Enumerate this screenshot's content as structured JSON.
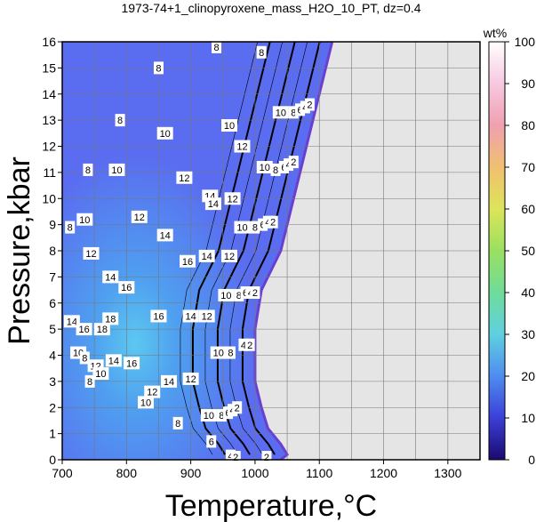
{
  "chart_data": {
    "type": "heatmap",
    "title": "1973-74+1_clinopyroxene_mass_H2O_10_PT, dz=0.4",
    "xlabel": "Temperature,°C",
    "ylabel": "Pressure,kbar",
    "xlim": [
      700,
      1350
    ],
    "ylim": [
      0,
      16
    ],
    "xticks": [
      700,
      800,
      900,
      1000,
      1100,
      1200,
      1300
    ],
    "yticks": [
      0,
      1,
      2,
      3,
      4,
      5,
      6,
      7,
      8,
      9,
      10,
      11,
      12,
      13,
      14,
      15,
      16
    ],
    "grid": true,
    "colorbar": {
      "label": "wt%",
      "range": [
        0,
        100
      ],
      "ticks": [
        0,
        10,
        20,
        30,
        40,
        50,
        60,
        70,
        80,
        90,
        100
      ],
      "colors": [
        "#1a0a6e",
        "#3b3fd8",
        "#4f8cf0",
        "#5fd0e0",
        "#6fdc9a",
        "#9ae060",
        "#dde45a",
        "#f0c070",
        "#f0a0b0",
        "#f7c8e0",
        "#ffffff"
      ]
    },
    "no_data_color": "#e5e5e5",
    "stability_boundary": {
      "x": [
        1120,
        1100,
        1080,
        1060,
        1040,
        1010,
        1000,
        1000,
        1010,
        1020,
        1040,
        1050,
        1040
      ],
      "y": [
        16,
        14,
        12,
        10,
        8,
        6.5,
        5,
        3,
        2,
        1.2,
        0.6,
        0.2,
        0
      ]
    },
    "contour_labels": [
      {
        "text": "8",
        "x": 940,
        "y": 15.8
      },
      {
        "text": "8",
        "x": 1010,
        "y": 15.6
      },
      {
        "text": "8",
        "x": 850,
        "y": 15.0
      },
      {
        "text": "8",
        "x": 790,
        "y": 13.0
      },
      {
        "text": "10",
        "x": 960,
        "y": 12.8
      },
      {
        "text": "10",
        "x": 1040,
        "y": 13.3
      },
      {
        "text": "8",
        "x": 1060,
        "y": 13.3
      },
      {
        "text": "6",
        "x": 1070,
        "y": 13.4
      },
      {
        "text": "4",
        "x": 1078,
        "y": 13.5
      },
      {
        "text": "2",
        "x": 1085,
        "y": 13.6
      },
      {
        "text": "10",
        "x": 860,
        "y": 12.5
      },
      {
        "text": "12",
        "x": 980,
        "y": 12.0
      },
      {
        "text": "8",
        "x": 740,
        "y": 11.1
      },
      {
        "text": "10",
        "x": 785,
        "y": 11.1
      },
      {
        "text": "12",
        "x": 890,
        "y": 10.8
      },
      {
        "text": "10",
        "x": 1015,
        "y": 11.2
      },
      {
        "text": "8",
        "x": 1032,
        "y": 11.1
      },
      {
        "text": "6",
        "x": 1045,
        "y": 11.2
      },
      {
        "text": "4",
        "x": 1052,
        "y": 11.3
      },
      {
        "text": "2",
        "x": 1060,
        "y": 11.4
      },
      {
        "text": "14",
        "x": 930,
        "y": 10.1
      },
      {
        "text": "14",
        "x": 935,
        "y": 9.8
      },
      {
        "text": "12",
        "x": 965,
        "y": 10.0
      },
      {
        "text": "12",
        "x": 820,
        "y": 9.3
      },
      {
        "text": "10",
        "x": 735,
        "y": 9.2
      },
      {
        "text": "8",
        "x": 712,
        "y": 8.9
      },
      {
        "text": "14",
        "x": 860,
        "y": 8.6
      },
      {
        "text": "10",
        "x": 980,
        "y": 8.9
      },
      {
        "text": "8",
        "x": 1000,
        "y": 8.9
      },
      {
        "text": "6",
        "x": 1012,
        "y": 9.0
      },
      {
        "text": "4",
        "x": 1020,
        "y": 9.1
      },
      {
        "text": "2",
        "x": 1028,
        "y": 9.1
      },
      {
        "text": "12",
        "x": 745,
        "y": 7.9
      },
      {
        "text": "16",
        "x": 895,
        "y": 7.6
      },
      {
        "text": "14",
        "x": 925,
        "y": 7.8
      },
      {
        "text": "12",
        "x": 960,
        "y": 7.8
      },
      {
        "text": "14",
        "x": 775,
        "y": 7.0
      },
      {
        "text": "16",
        "x": 800,
        "y": 6.6
      },
      {
        "text": "10",
        "x": 955,
        "y": 6.3
      },
      {
        "text": "8",
        "x": 975,
        "y": 6.3
      },
      {
        "text": "6",
        "x": 985,
        "y": 6.4
      },
      {
        "text": "4",
        "x": 993,
        "y": 6.4
      },
      {
        "text": "2",
        "x": 1000,
        "y": 6.4
      },
      {
        "text": "14",
        "x": 715,
        "y": 5.3
      },
      {
        "text": "18",
        "x": 775,
        "y": 5.4
      },
      {
        "text": "18",
        "x": 762,
        "y": 5.0
      },
      {
        "text": "16",
        "x": 734,
        "y": 5.0
      },
      {
        "text": "16",
        "x": 850,
        "y": 5.5
      },
      {
        "text": "14",
        "x": 900,
        "y": 5.5
      },
      {
        "text": "12",
        "x": 925,
        "y": 5.5
      },
      {
        "text": "4",
        "x": 982,
        "y": 4.4
      },
      {
        "text": "2",
        "x": 992,
        "y": 4.4
      },
      {
        "text": "10",
        "x": 943,
        "y": 4.1
      },
      {
        "text": "8",
        "x": 962,
        "y": 4.1
      },
      {
        "text": "10",
        "x": 725,
        "y": 4.1
      },
      {
        "text": "8",
        "x": 735,
        "y": 3.9
      },
      {
        "text": "14",
        "x": 780,
        "y": 3.8
      },
      {
        "text": "16",
        "x": 808,
        "y": 3.7
      },
      {
        "text": "12",
        "x": 752,
        "y": 3.6
      },
      {
        "text": "10",
        "x": 760,
        "y": 3.3
      },
      {
        "text": "8",
        "x": 743,
        "y": 3.0
      },
      {
        "text": "14",
        "x": 866,
        "y": 3.0
      },
      {
        "text": "12",
        "x": 900,
        "y": 3.1
      },
      {
        "text": "12",
        "x": 840,
        "y": 2.6
      },
      {
        "text": "10",
        "x": 830,
        "y": 2.2
      },
      {
        "text": "10",
        "x": 928,
        "y": 1.7
      },
      {
        "text": "8",
        "x": 948,
        "y": 1.7
      },
      {
        "text": "6",
        "x": 958,
        "y": 1.8
      },
      {
        "text": "4",
        "x": 965,
        "y": 1.9
      },
      {
        "text": "2",
        "x": 972,
        "y": 2.0
      },
      {
        "text": "8",
        "x": 880,
        "y": 1.4
      },
      {
        "text": "6",
        "x": 932,
        "y": 0.7
      },
      {
        "text": "4",
        "x": 962,
        "y": 0.15
      },
      {
        "text": "2",
        "x": 970,
        "y": 0.1
      },
      {
        "text": "2",
        "x": 1018,
        "y": 0.1
      }
    ]
  }
}
